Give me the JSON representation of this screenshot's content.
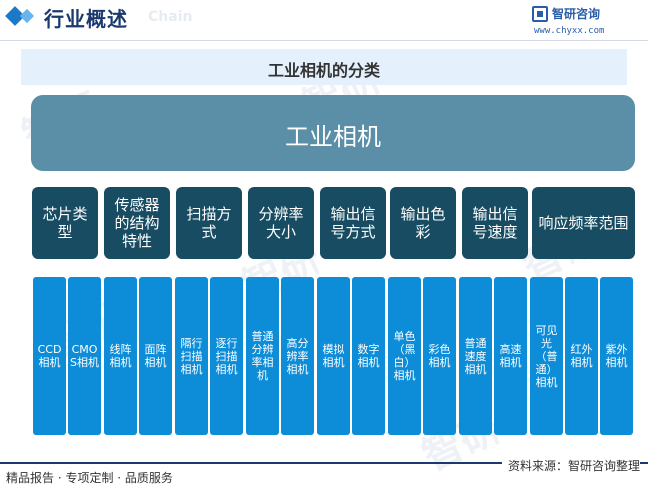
{
  "header": {
    "title": "行业概述",
    "ghost": "Chain",
    "brand_name": "智研咨询",
    "brand_url": "www.chyxx.com"
  },
  "diagram": {
    "title": "工业相机的分类",
    "root": "工业相机",
    "categories": [
      {
        "label": "芯片类型",
        "items": [
          "CCD相机",
          "CMOS相机"
        ]
      },
      {
        "label": "传感器的结构特性",
        "items": [
          "线阵相机",
          "面阵相机"
        ]
      },
      {
        "label": "扫描方式",
        "items": [
          "隔行扫描相机",
          "逐行扫描相机"
        ]
      },
      {
        "label": "分辨率大小",
        "items": [
          "普通分辨率相机",
          "高分辨率相机"
        ]
      },
      {
        "label": "输出信号方式",
        "items": [
          "模拟相机",
          "数字相机"
        ]
      },
      {
        "label": "输出色彩",
        "items": [
          "单色（黑白）相机",
          "彩色相机"
        ]
      },
      {
        "label": "输出信号速度",
        "items": [
          "普通速度相机",
          "高速相机"
        ]
      },
      {
        "label": "响应频率范围",
        "items": [
          "可见光（普通）相机",
          "红外相机",
          "紫外相机"
        ]
      }
    ]
  },
  "footer": {
    "source": "资料来源：智研咨询整理",
    "slogan": "精品报告 · 专项定制 · 品质服务"
  },
  "colors": {
    "header_title": "#1a3a6e",
    "title_band": "#e4f0fb",
    "root_box": "#5b8ea7",
    "category_box": "#184c62",
    "leaf_box": "#0d8cd8"
  }
}
